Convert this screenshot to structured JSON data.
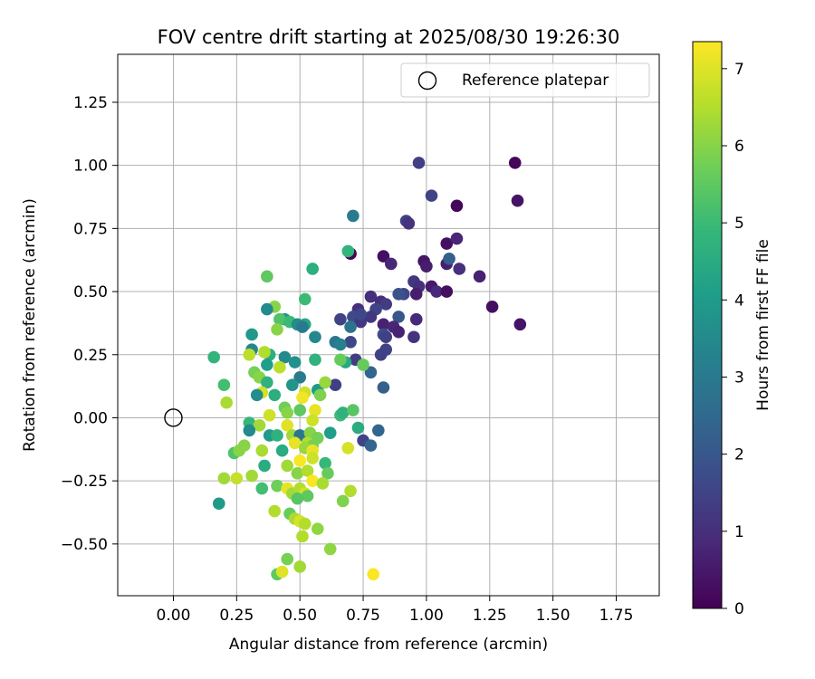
{
  "chart_data": {
    "type": "scatter",
    "title": "FOV centre drift starting at 2025/08/30 19:26:30",
    "xlabel": "Angular distance from reference (arcmin)",
    "ylabel": "Rotation from reference (arcmin)",
    "xlim": [
      -0.22,
      1.92
    ],
    "ylim": [
      -0.705,
      1.44
    ],
    "xticks": [
      0.0,
      0.25,
      0.5,
      0.75,
      1.0,
      1.25,
      1.5,
      1.75
    ],
    "xtick_labels": [
      "0.00",
      "0.25",
      "0.50",
      "0.75",
      "1.00",
      "1.25",
      "1.50",
      "1.75"
    ],
    "yticks": [
      -0.5,
      -0.25,
      0.0,
      0.25,
      0.5,
      0.75,
      1.0,
      1.25
    ],
    "ytick_labels": [
      "−0.50",
      "−0.25",
      "0.00",
      "0.25",
      "0.50",
      "0.75",
      "1.00",
      "1.25"
    ],
    "grid": true,
    "legend": {
      "position": "top-right",
      "entries": [
        "Reference platepar"
      ]
    },
    "reference_point": {
      "x": 0.0,
      "y": 0.0,
      "label": "Reference platepar"
    },
    "colorbar": {
      "label": "Hours from first FF file",
      "range": [
        0,
        7.35
      ],
      "ticks": [
        0,
        1,
        2,
        3,
        4,
        5,
        6,
        7
      ],
      "tick_labels": [
        "0",
        "1",
        "2",
        "3",
        "4",
        "5",
        "6",
        "7"
      ],
      "colormap": "viridis",
      "stops": [
        "#440154",
        "#482878",
        "#3e4989",
        "#31688e",
        "#26828e",
        "#1f9e89",
        "#35b779",
        "#6ece58",
        "#b5de2b",
        "#fde725"
      ]
    },
    "series": [
      {
        "name": "FOV centre",
        "points": [
          [
            0.7,
            0.65,
            0.1
          ],
          [
            0.83,
            0.64,
            0.3
          ],
          [
            0.86,
            0.61,
            0.8
          ],
          [
            0.97,
            1.01,
            1.4
          ],
          [
            1.02,
            0.88,
            1.5
          ],
          [
            1.12,
            0.84,
            0.1
          ],
          [
            1.35,
            1.01,
            0.1
          ],
          [
            1.36,
            0.86,
            0.4
          ],
          [
            0.92,
            0.78,
            1.4
          ],
          [
            0.93,
            0.77,
            1.1
          ],
          [
            1.08,
            0.69,
            0.3
          ],
          [
            1.12,
            0.71,
            0.8
          ],
          [
            0.99,
            0.62,
            0.4
          ],
          [
            1.0,
            0.6,
            0.6
          ],
          [
            1.08,
            0.61,
            0.6
          ],
          [
            1.09,
            0.63,
            2.2
          ],
          [
            1.13,
            0.59,
            1.0
          ],
          [
            1.21,
            0.56,
            0.7
          ],
          [
            0.95,
            0.54,
            1.2
          ],
          [
            0.97,
            0.52,
            1.0
          ],
          [
            1.02,
            0.52,
            0.5
          ],
          [
            1.04,
            0.5,
            0.9
          ],
          [
            1.08,
            0.5,
            0.3
          ],
          [
            0.96,
            0.49,
            0.6
          ],
          [
            0.91,
            0.49,
            1.6
          ],
          [
            0.78,
            0.48,
            1.0
          ],
          [
            0.82,
            0.46,
            1.0
          ],
          [
            0.84,
            0.45,
            1.3
          ],
          [
            0.8,
            0.43,
            1.5
          ],
          [
            0.73,
            0.43,
            1.0
          ],
          [
            0.78,
            0.4,
            1.2
          ],
          [
            0.89,
            0.4,
            2.0
          ],
          [
            0.96,
            0.39,
            0.9
          ],
          [
            0.71,
            0.4,
            1.7
          ],
          [
            0.66,
            0.39,
            1.5
          ],
          [
            0.74,
            0.38,
            1.2
          ],
          [
            0.7,
            0.36,
            2.8
          ],
          [
            0.83,
            0.37,
            0.7
          ],
          [
            0.87,
            0.36,
            0.8
          ],
          [
            0.89,
            0.34,
            0.7
          ],
          [
            0.83,
            0.33,
            1.8
          ],
          [
            0.84,
            0.32,
            1.4
          ],
          [
            0.95,
            0.32,
            1.1
          ],
          [
            0.7,
            0.3,
            1.6
          ],
          [
            0.64,
            0.3,
            2.9
          ],
          [
            0.66,
            0.29,
            3.2
          ],
          [
            0.84,
            0.27,
            1.5
          ],
          [
            0.82,
            0.25,
            1.4
          ],
          [
            1.26,
            0.44,
            0.3
          ],
          [
            1.37,
            0.37,
            0.4
          ],
          [
            0.72,
            0.23,
            1.3
          ],
          [
            0.68,
            0.22,
            4.4
          ],
          [
            0.78,
            0.18,
            2.4
          ],
          [
            0.64,
            0.13,
            1.4
          ],
          [
            0.83,
            0.12,
            2.2
          ],
          [
            0.71,
            0.8,
            3.0
          ],
          [
            0.69,
            0.66,
            4.8
          ],
          [
            0.55,
            0.59,
            4.6
          ],
          [
            0.37,
            0.56,
            5.5
          ],
          [
            0.52,
            0.47,
            5.0
          ],
          [
            0.4,
            0.44,
            6.0
          ],
          [
            0.37,
            0.43,
            3.5
          ],
          [
            0.44,
            0.39,
            3.9
          ],
          [
            0.42,
            0.39,
            5.3
          ],
          [
            0.46,
            0.38,
            5.0
          ],
          [
            0.49,
            0.37,
            3.6
          ],
          [
            0.52,
            0.37,
            4.4
          ],
          [
            0.51,
            0.36,
            3.0
          ],
          [
            0.41,
            0.35,
            6.0
          ],
          [
            0.31,
            0.33,
            3.9
          ],
          [
            0.56,
            0.32,
            3.4
          ],
          [
            0.31,
            0.27,
            3.4
          ],
          [
            0.16,
            0.24,
            4.8
          ],
          [
            0.38,
            0.25,
            4.6
          ],
          [
            0.36,
            0.26,
            6.5
          ],
          [
            0.3,
            0.25,
            6.6
          ],
          [
            0.44,
            0.24,
            3.5
          ],
          [
            0.48,
            0.22,
            3.7
          ],
          [
            0.56,
            0.23,
            4.7
          ],
          [
            0.66,
            0.23,
            5.6
          ],
          [
            0.75,
            0.21,
            5.6
          ],
          [
            0.37,
            0.21,
            4.1
          ],
          [
            0.42,
            0.2,
            6.6
          ],
          [
            0.32,
            0.18,
            5.8
          ],
          [
            0.34,
            0.16,
            6.0
          ],
          [
            0.5,
            0.16,
            3.0
          ],
          [
            0.47,
            0.13,
            3.8
          ],
          [
            0.37,
            0.14,
            4.7
          ],
          [
            0.2,
            0.13,
            5.1
          ],
          [
            0.57,
            0.11,
            4.0
          ],
          [
            0.52,
            0.1,
            6.8
          ],
          [
            0.35,
            0.1,
            6.9
          ],
          [
            0.33,
            0.09,
            3.6
          ],
          [
            0.4,
            0.09,
            4.6
          ],
          [
            0.51,
            0.08,
            7.2
          ],
          [
            0.58,
            0.09,
            5.9
          ],
          [
            0.21,
            0.06,
            6.4
          ],
          [
            0.44,
            0.04,
            5.7
          ],
          [
            0.38,
            0.01,
            6.8
          ],
          [
            0.3,
            -0.02,
            4.9
          ],
          [
            0.34,
            -0.03,
            6.3
          ],
          [
            0.45,
            0.02,
            6.0
          ],
          [
            0.5,
            0.03,
            5.5
          ],
          [
            0.56,
            0.03,
            7.1
          ],
          [
            0.66,
            0.01,
            5.0
          ],
          [
            0.67,
            0.02,
            4.7
          ],
          [
            0.71,
            0.03,
            5.4
          ],
          [
            0.45,
            -0.03,
            7.0
          ],
          [
            0.55,
            -0.01,
            6.8
          ],
          [
            0.73,
            -0.04,
            4.5
          ],
          [
            0.81,
            -0.05,
            2.4
          ],
          [
            0.3,
            -0.05,
            3.5
          ],
          [
            0.38,
            -0.07,
            4.0
          ],
          [
            0.41,
            -0.07,
            4.7
          ],
          [
            0.47,
            -0.07,
            6.3
          ],
          [
            0.5,
            -0.07,
            2.9
          ],
          [
            0.54,
            -0.06,
            6.0
          ],
          [
            0.57,
            -0.08,
            5.8
          ],
          [
            0.62,
            -0.06,
            4.1
          ],
          [
            0.75,
            -0.09,
            1.5
          ],
          [
            0.78,
            -0.11,
            2.4
          ],
          [
            0.69,
            -0.12,
            6.9
          ],
          [
            0.48,
            -0.1,
            7.1
          ],
          [
            0.53,
            -0.1,
            6.5
          ],
          [
            0.55,
            -0.11,
            5.8
          ],
          [
            0.28,
            -0.11,
            6.0
          ],
          [
            0.35,
            -0.13,
            6.4
          ],
          [
            0.43,
            -0.13,
            4.5
          ],
          [
            0.52,
            -0.12,
            6.2
          ],
          [
            0.55,
            -0.13,
            7.1
          ],
          [
            0.24,
            -0.14,
            5.3
          ],
          [
            0.36,
            -0.19,
            4.5
          ],
          [
            0.45,
            -0.19,
            6.3
          ],
          [
            0.5,
            -0.17,
            7.3
          ],
          [
            0.55,
            -0.16,
            6.8
          ],
          [
            0.6,
            -0.18,
            4.9
          ],
          [
            0.49,
            -0.22,
            6.0
          ],
          [
            0.53,
            -0.21,
            6.5
          ],
          [
            0.61,
            -0.22,
            5.6
          ],
          [
            0.2,
            -0.24,
            6.3
          ],
          [
            0.25,
            -0.24,
            6.7
          ],
          [
            0.31,
            -0.23,
            6.3
          ],
          [
            0.35,
            -0.28,
            5.1
          ],
          [
            0.41,
            -0.27,
            5.7
          ],
          [
            0.45,
            -0.28,
            7.1
          ],
          [
            0.47,
            -0.3,
            6.3
          ],
          [
            0.5,
            -0.28,
            6.5
          ],
          [
            0.52,
            -0.3,
            6.9
          ],
          [
            0.53,
            -0.31,
            5.5
          ],
          [
            0.55,
            -0.25,
            7.3
          ],
          [
            0.59,
            -0.26,
            6.4
          ],
          [
            0.7,
            -0.29,
            6.5
          ],
          [
            0.49,
            -0.32,
            5.4
          ],
          [
            0.67,
            -0.33,
            5.9
          ],
          [
            0.18,
            -0.34,
            4.0
          ],
          [
            0.4,
            -0.37,
            6.5
          ],
          [
            0.46,
            -0.38,
            5.6
          ],
          [
            0.48,
            -0.4,
            6.4
          ],
          [
            0.5,
            -0.41,
            6.9
          ],
          [
            0.52,
            -0.42,
            6.5
          ],
          [
            0.57,
            -0.44,
            6.1
          ],
          [
            0.51,
            -0.47,
            6.5
          ],
          [
            0.62,
            -0.52,
            6.1
          ],
          [
            0.45,
            -0.56,
            5.8
          ],
          [
            0.5,
            -0.59,
            6.3
          ],
          [
            0.41,
            -0.62,
            5.5
          ],
          [
            0.43,
            -0.61,
            7.0
          ],
          [
            0.79,
            -0.62,
            7.3
          ],
          [
            0.89,
            0.49,
            1.9
          ],
          [
            0.74,
            0.41,
            1.6
          ],
          [
            0.6,
            0.14,
            6.2
          ],
          [
            0.26,
            -0.13,
            6.0
          ]
        ]
      }
    ]
  }
}
